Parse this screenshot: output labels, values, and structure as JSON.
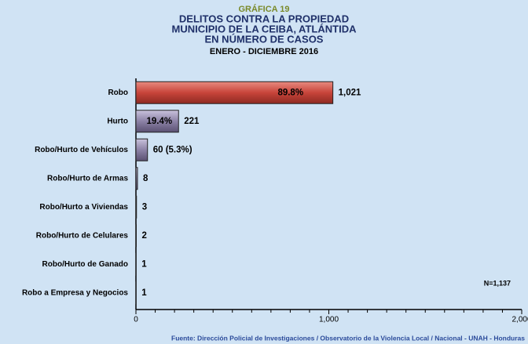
{
  "chart_data": {
    "type": "hbar",
    "supertitle": "GRÁFICA 19",
    "title": [
      "DELITOS CONTRA LA PROPIEDAD",
      "MUNICIPIO DE LA CEIBA, ATLÁNTIDA",
      "EN NÚMERO DE CASOS"
    ],
    "subtitle": "ENERO - DICIEMBRE 2016",
    "categories": [
      "Robo",
      "Hurto",
      "Robo/Hurto de Vehículos",
      "Robo/Hurto de Armas",
      "Robo/Hurto a Viviendas",
      "Robo/Hurto de Celulares",
      "Robo/Hurto de Ganado",
      "Robo a Empresa y Negocios"
    ],
    "values": [
      1021,
      221,
      60,
      8,
      3,
      2,
      1,
      1
    ],
    "value_labels": [
      "1,021",
      "221",
      "60 (5.3%)",
      "8",
      "3",
      "2",
      "1",
      "1"
    ],
    "share_labels": [
      "89.8%",
      "19.4%",
      null,
      null,
      null,
      null,
      null,
      null
    ],
    "colors": [
      "#c8443a",
      "#8c82a6",
      "#8c82a6",
      "#8c82a6",
      "#8c82a6",
      "#8c82a6",
      "#8c82a6",
      "#8c82a6"
    ],
    "xlim": [
      0,
      2000
    ],
    "xticks": [
      0,
      {
        "value": 1000,
        "label": "1,000"
      },
      {
        "value": 2000,
        "label": "2,000"
      }
    ],
    "xticks_minor": [
      100,
      200,
      300,
      400,
      500,
      600,
      700,
      800,
      900,
      1100,
      1200,
      1300,
      1400,
      1500,
      1600,
      1700,
      1800,
      1900
    ],
    "annotation": "N=1,137",
    "source": "Fuente: Dirección Policial de Investigaciones / Observatorio de la Violencia Local / Nacional - UNAH - Honduras"
  }
}
